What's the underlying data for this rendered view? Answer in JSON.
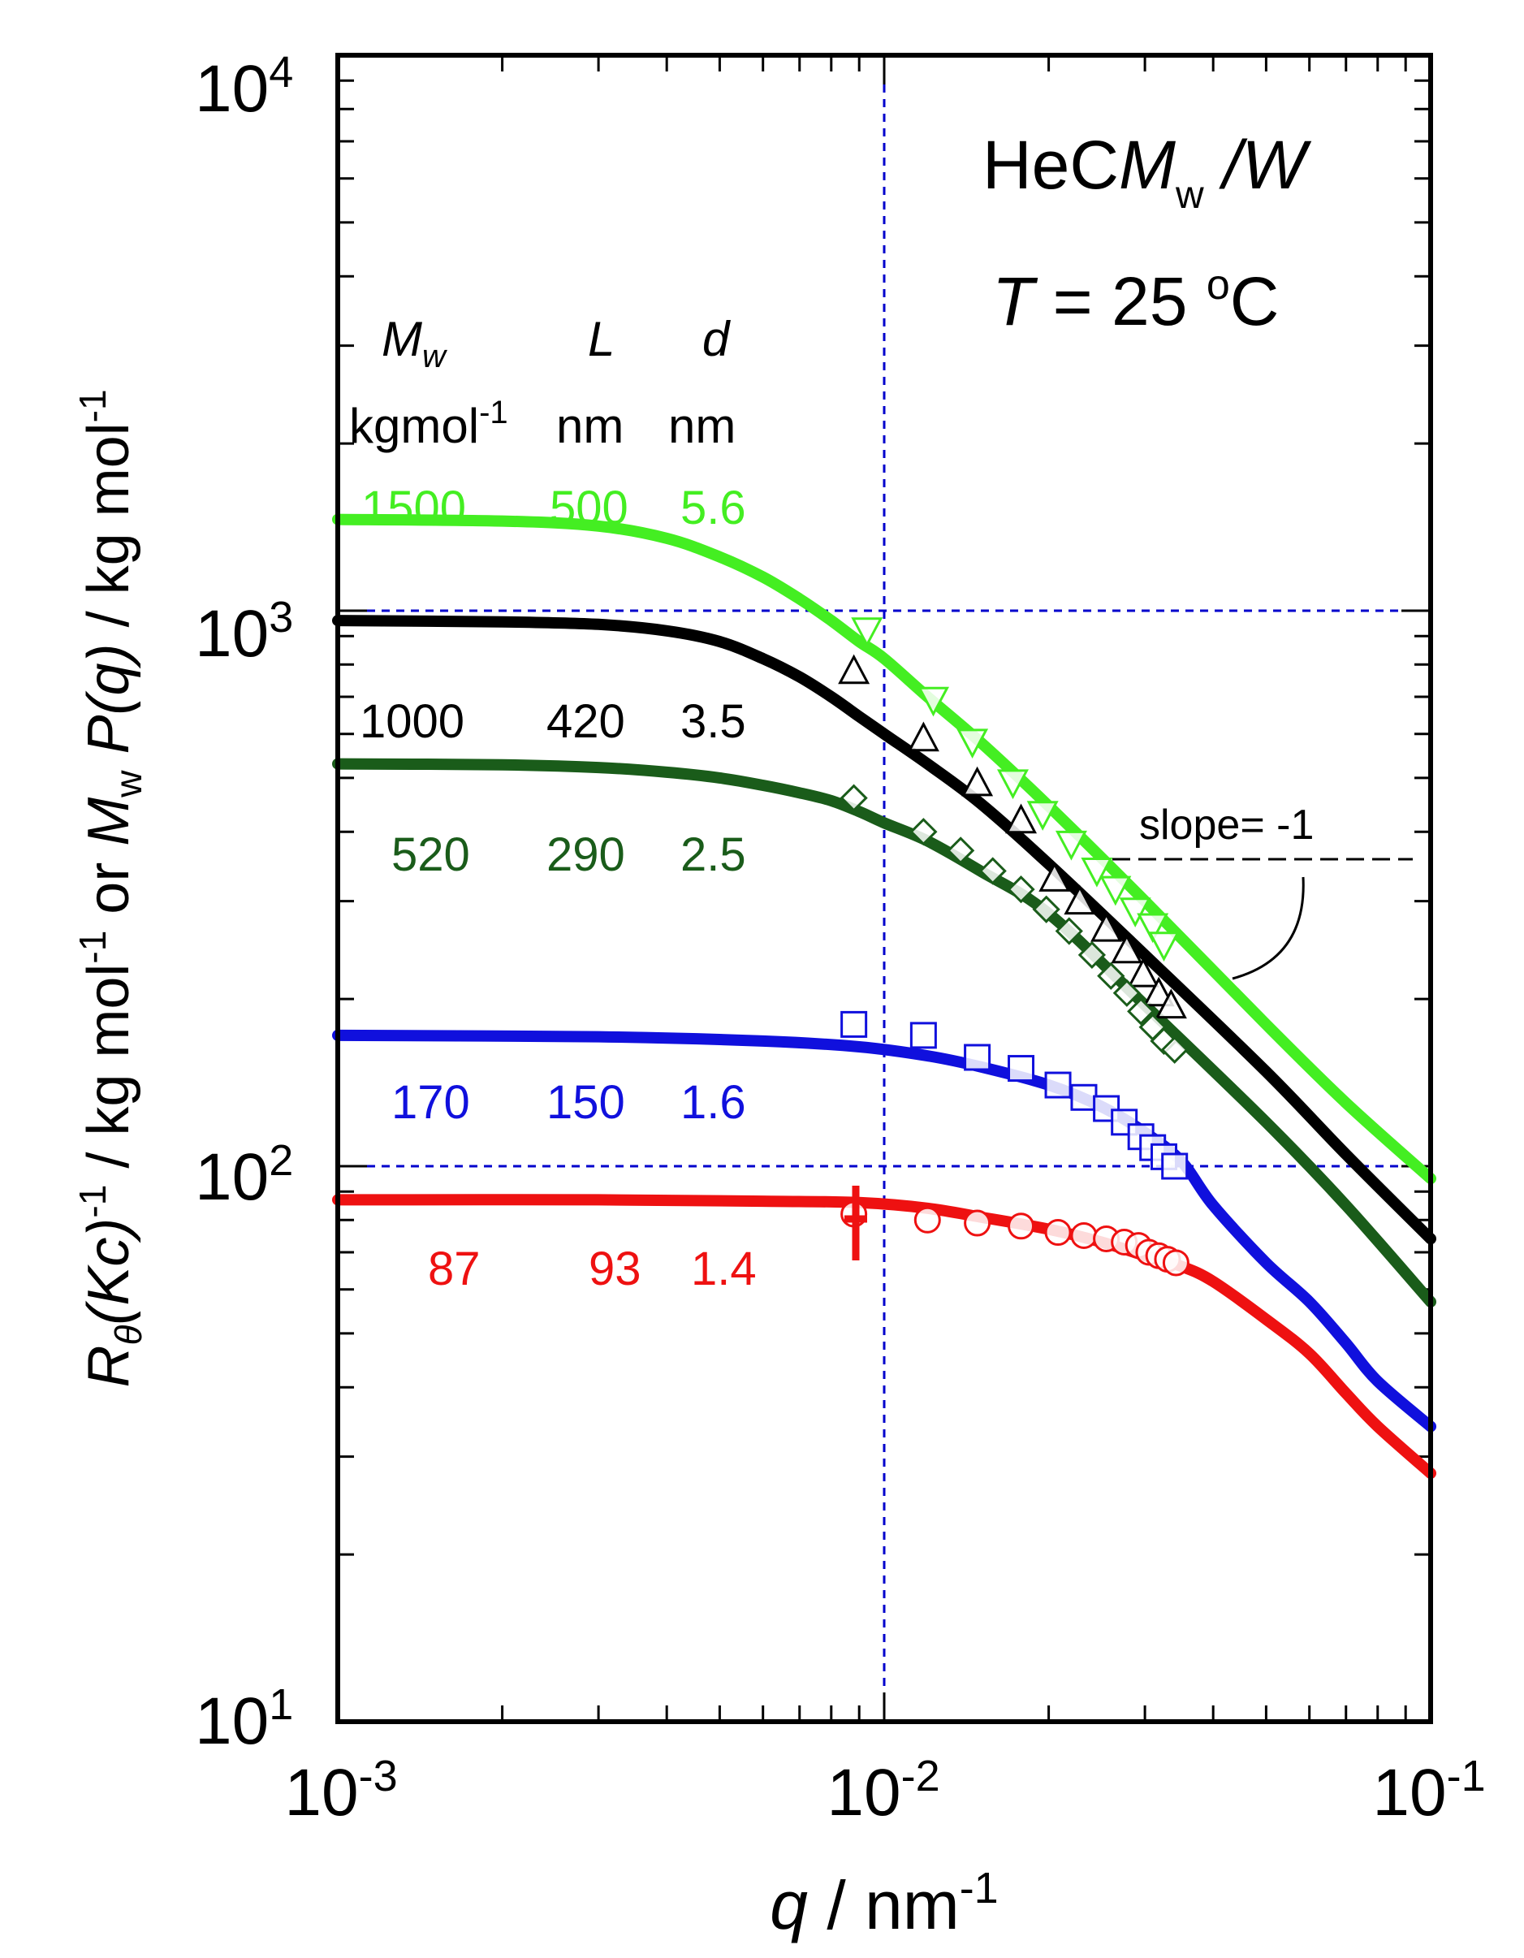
{
  "chart_data": {
    "type": "scatter",
    "title_line1": {
      "prefix": "HeC",
      "m": "M",
      "sub": "w",
      "suffix": " /W"
    },
    "title_line2": {
      "t": "T",
      "rest": " = 25 ",
      "deg": "o",
      "unit": "C"
    },
    "xlabel": {
      "var": "q",
      "unit": " / nm",
      "exp": "-1"
    },
    "ylabel": {
      "r": "R",
      "theta": "θ",
      "kc": "(Kc)",
      "exp1": "-1",
      "mid": " / kg mol",
      "exp2": "-1",
      "or": " or ",
      "m": "M",
      "w": "w",
      "p": " P(q)",
      "end": " / kg mol",
      "exp3": "-1"
    },
    "xscale": "log",
    "yscale": "log",
    "xlim": [
      0.001,
      0.1
    ],
    "ylim": [
      10,
      10000
    ],
    "x_ticks": [
      {
        "base": "10",
        "exp": "-3"
      },
      {
        "base": "10",
        "exp": "-2"
      },
      {
        "base": "10",
        "exp": "-1"
      }
    ],
    "y_ticks": [
      {
        "base": "10",
        "exp": "1"
      },
      {
        "base": "10",
        "exp": "2"
      },
      {
        "base": "10",
        "exp": "3"
      },
      {
        "base": "10",
        "exp": "4"
      }
    ],
    "reference_lines": {
      "vertical_x": [
        0.01
      ],
      "horizontal_y": [
        100,
        1000
      ],
      "color": "#0000cc"
    },
    "table_header": {
      "mw": "M",
      "mw_sub": "w",
      "l": "L",
      "d": "d",
      "mw_unit": "kgmol",
      "mw_unit_exp": "-1",
      "l_unit": "nm",
      "d_unit": "nm"
    },
    "slope_label": "slope= -1",
    "series": [
      {
        "name": "1500",
        "Mw": "1500",
        "L": "500",
        "d": "5.6",
        "color": "#44ee22",
        "marker": "triangle-down",
        "curve": [
          [
            0.001,
            1460
          ],
          [
            0.002,
            1450
          ],
          [
            0.003,
            1420
          ],
          [
            0.004,
            1350
          ],
          [
            0.005,
            1250
          ],
          [
            0.006,
            1150
          ],
          [
            0.007,
            1050
          ],
          [
            0.008,
            960
          ],
          [
            0.009,
            880
          ],
          [
            0.01,
            820
          ],
          [
            0.012,
            700
          ],
          [
            0.015,
            580
          ],
          [
            0.02,
            445
          ],
          [
            0.03,
            300
          ],
          [
            0.05,
            180
          ],
          [
            0.07,
            130
          ],
          [
            0.1,
            95
          ]
        ],
        "points": [
          [
            0.0093,
            920
          ],
          [
            0.0123,
            690
          ],
          [
            0.0145,
            580
          ],
          [
            0.0172,
            490
          ],
          [
            0.0195,
            430
          ],
          [
            0.022,
            380
          ],
          [
            0.0245,
            340
          ],
          [
            0.0265,
            315
          ],
          [
            0.0288,
            288
          ],
          [
            0.031,
            270
          ],
          [
            0.0325,
            250
          ]
        ]
      },
      {
        "name": "1000",
        "Mw": "1000",
        "L": "420",
        "d": "3.5",
        "color": "#000000",
        "marker": "triangle-up",
        "curve": [
          [
            0.001,
            960
          ],
          [
            0.002,
            955
          ],
          [
            0.003,
            945
          ],
          [
            0.004,
            920
          ],
          [
            0.005,
            880
          ],
          [
            0.006,
            820
          ],
          [
            0.007,
            760
          ],
          [
            0.008,
            700
          ],
          [
            0.009,
            645
          ],
          [
            0.01,
            600
          ],
          [
            0.012,
            530
          ],
          [
            0.015,
            450
          ],
          [
            0.02,
            350
          ],
          [
            0.03,
            240
          ],
          [
            0.05,
            148
          ],
          [
            0.07,
            105
          ],
          [
            0.1,
            74
          ]
        ],
        "points": [
          [
            0.0088,
            780
          ],
          [
            0.0118,
            590
          ],
          [
            0.0148,
            490
          ],
          [
            0.0178,
            420
          ],
          [
            0.0205,
            330
          ],
          [
            0.0228,
            300
          ],
          [
            0.0255,
            268
          ],
          [
            0.0278,
            245
          ],
          [
            0.0298,
            222
          ],
          [
            0.0318,
            205
          ],
          [
            0.0335,
            195
          ]
        ]
      },
      {
        "name": "520",
        "Mw": "520",
        "L": "290",
        "d": "2.5",
        "color": "#1a5c1a",
        "marker": "diamond",
        "curve": [
          [
            0.001,
            530
          ],
          [
            0.002,
            528
          ],
          [
            0.003,
            522
          ],
          [
            0.004,
            512
          ],
          [
            0.005,
            500
          ],
          [
            0.006,
            485
          ],
          [
            0.007,
            470
          ],
          [
            0.008,
            455
          ],
          [
            0.009,
            435
          ],
          [
            0.01,
            415
          ],
          [
            0.012,
            385
          ],
          [
            0.015,
            340
          ],
          [
            0.02,
            285
          ],
          [
            0.03,
            195
          ],
          [
            0.05,
            120
          ],
          [
            0.07,
            85
          ],
          [
            0.1,
            57
          ]
        ],
        "points": [
          [
            0.0088,
            460
          ],
          [
            0.0118,
            400
          ],
          [
            0.0138,
            370
          ],
          [
            0.0158,
            340
          ],
          [
            0.0178,
            315
          ],
          [
            0.0198,
            290
          ],
          [
            0.0218,
            265
          ],
          [
            0.024,
            240
          ],
          [
            0.026,
            220
          ],
          [
            0.0278,
            205
          ],
          [
            0.0295,
            190
          ],
          [
            0.031,
            178
          ],
          [
            0.0325,
            168
          ],
          [
            0.034,
            162
          ]
        ]
      },
      {
        "name": "170",
        "Mw": "170",
        "L": "150",
        "d": "1.6",
        "color": "#1010dd",
        "marker": "square",
        "curve": [
          [
            0.001,
            172
          ],
          [
            0.003,
            171
          ],
          [
            0.006,
            168
          ],
          [
            0.009,
            164
          ],
          [
            0.012,
            158
          ],
          [
            0.015,
            151
          ],
          [
            0.02,
            140
          ],
          [
            0.025,
            128
          ],
          [
            0.03,
            115
          ],
          [
            0.035,
            102
          ],
          [
            0.04,
            85
          ],
          [
            0.05,
            67
          ],
          [
            0.06,
            57
          ],
          [
            0.07,
            48
          ],
          [
            0.08,
            41
          ],
          [
            0.1,
            34
          ]
        ],
        "points": [
          [
            0.0088,
            180
          ],
          [
            0.0118,
            172
          ],
          [
            0.0148,
            157
          ],
          [
            0.0178,
            150
          ],
          [
            0.0208,
            140
          ],
          [
            0.0232,
            133
          ],
          [
            0.0255,
            127
          ],
          [
            0.0275,
            120
          ],
          [
            0.0295,
            113
          ],
          [
            0.031,
            108
          ],
          [
            0.0325,
            104
          ],
          [
            0.034,
            100
          ]
        ]
      },
      {
        "name": "87",
        "Mw": "87",
        "L": "93",
        "d": "1.4",
        "color": "#ee1111",
        "marker": "circle",
        "curve": [
          [
            0.001,
            87
          ],
          [
            0.003,
            87
          ],
          [
            0.006,
            86.5
          ],
          [
            0.009,
            86
          ],
          [
            0.012,
            84
          ],
          [
            0.015,
            81
          ],
          [
            0.02,
            77
          ],
          [
            0.025,
            73
          ],
          [
            0.03,
            69
          ],
          [
            0.035,
            66
          ],
          [
            0.04,
            62
          ],
          [
            0.05,
            53
          ],
          [
            0.06,
            46
          ],
          [
            0.07,
            39
          ],
          [
            0.08,
            34
          ],
          [
            0.1,
            28
          ]
        ],
        "points": [
          [
            0.0088,
            82
          ],
          [
            0.012,
            80
          ],
          [
            0.0148,
            79
          ],
          [
            0.0178,
            78
          ],
          [
            0.0208,
            76
          ],
          [
            0.0232,
            75
          ],
          [
            0.0255,
            74
          ],
          [
            0.0275,
            73
          ],
          [
            0.0292,
            72
          ],
          [
            0.0305,
            70
          ],
          [
            0.0318,
            69
          ],
          [
            0.033,
            68
          ],
          [
            0.0342,
            67
          ]
        ]
      }
    ]
  }
}
